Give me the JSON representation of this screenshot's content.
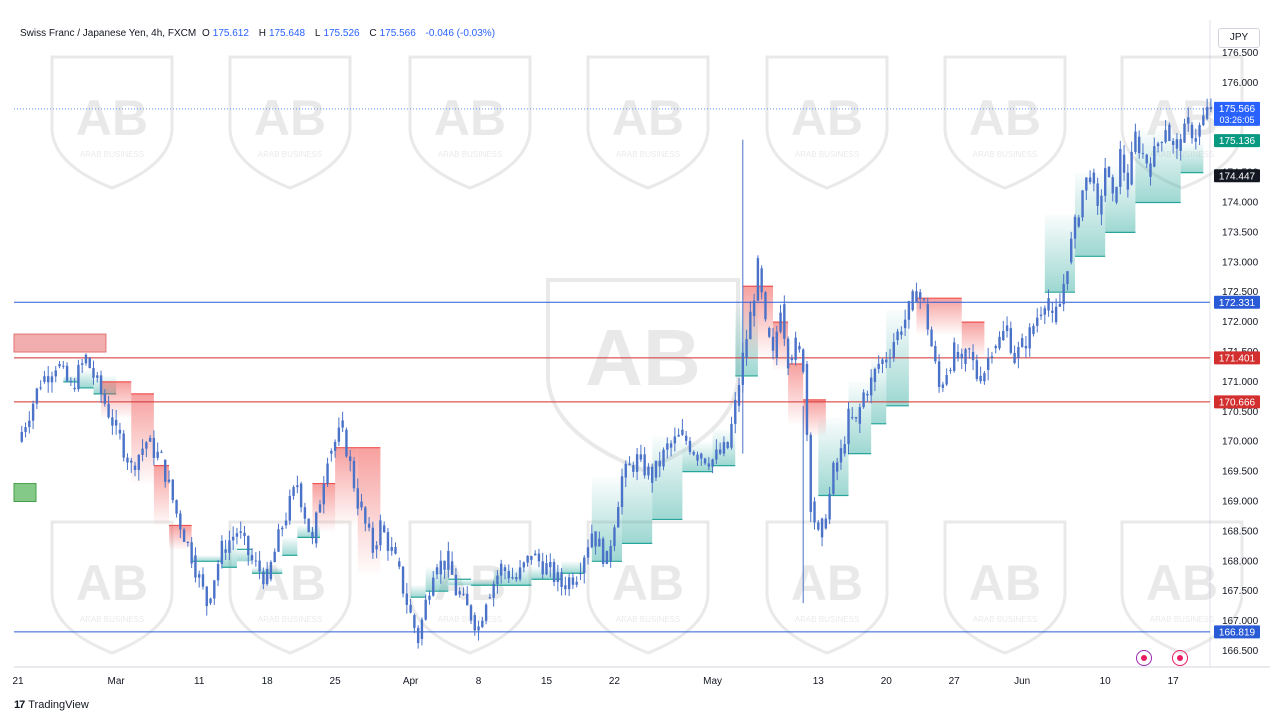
{
  "header": {
    "symbol": "Swiss Franc / Japanese Yen, 4h, FXCM",
    "open_label": "O",
    "open": "175.612",
    "high_label": "H",
    "high": "175.648",
    "low_label": "L",
    "low": "175.526",
    "close_label": "C",
    "close": "175.566",
    "change": "-0.046 (-0.03%)"
  },
  "currency": "JPY",
  "brand": "TradingView",
  "watermark_text": "ARAB BUSINESS",
  "colors": {
    "candle": "#4a72c8",
    "support_fill": "#26a69a",
    "resistance_fill": "#ef5350",
    "blue_line": "#2a5bd7",
    "red_line": "#d32f2f",
    "grid": "#f0f3fa"
  },
  "chart_data": {
    "type": "candlestick",
    "symbol": "CHFJPY",
    "interval": "4h",
    "y_ticks": [
      "176.500",
      "176.000",
      "175.500",
      "175.000",
      "174.500",
      "174.000",
      "173.500",
      "173.000",
      "172.500",
      "172.000",
      "171.500",
      "171.000",
      "170.500",
      "170.000",
      "169.500",
      "169.000",
      "168.500",
      "168.000",
      "167.500",
      "167.000",
      "166.500"
    ],
    "ylim": [
      166.3,
      176.75
    ],
    "x_ticks": [
      "21",
      "Mar",
      "11",
      "18",
      "25",
      "Apr",
      "8",
      "15",
      "22",
      "May",
      "13",
      "20",
      "27",
      "Jun",
      "10",
      "17"
    ],
    "price_labels": [
      {
        "id": "last_price",
        "value": "175.566",
        "time": "03:26:05"
      },
      {
        "id": "trail_stop",
        "value": "175.136"
      },
      {
        "id": "dark_level",
        "value": "174.447"
      },
      {
        "id": "blue_upper",
        "value": "172.331"
      },
      {
        "id": "red_upper",
        "value": "171.401"
      },
      {
        "id": "red_lower",
        "value": "170.666"
      },
      {
        "id": "blue_lower",
        "value": "166.819"
      }
    ],
    "horizontal_levels": [
      {
        "name": "resistance-blue",
        "value": 172.331,
        "color": "#2a5bd7"
      },
      {
        "name": "resistance-red-1",
        "value": 171.401,
        "color": "#d32f2f"
      },
      {
        "name": "resistance-red-2",
        "value": 170.666,
        "color": "#d32f2f"
      },
      {
        "name": "support-blue",
        "value": 166.819,
        "color": "#2a5bd7"
      }
    ],
    "price_path": [
      [
        0,
        170.0
      ],
      [
        3,
        171.0
      ],
      [
        5,
        171.3
      ],
      [
        7,
        170.9
      ],
      [
        9,
        171.4
      ],
      [
        11,
        170.8
      ],
      [
        13,
        170.2
      ],
      [
        15,
        169.6
      ],
      [
        17,
        170.0
      ],
      [
        19,
        169.7
      ],
      [
        21,
        168.8
      ],
      [
        23,
        168.1
      ],
      [
        25,
        167.3
      ],
      [
        27,
        168.2
      ],
      [
        29,
        168.5
      ],
      [
        31,
        168.0
      ],
      [
        33,
        167.7
      ],
      [
        35,
        168.6
      ],
      [
        37,
        169.3
      ],
      [
        39,
        168.3
      ],
      [
        41,
        169.8
      ],
      [
        43,
        170.2
      ],
      [
        45,
        169.0
      ],
      [
        47,
        168.2
      ],
      [
        48,
        168.6
      ],
      [
        50,
        168.0
      ],
      [
        52,
        167.1
      ],
      [
        53,
        166.7
      ],
      [
        55,
        167.9
      ],
      [
        57,
        168.0
      ],
      [
        58,
        167.5
      ],
      [
        60,
        167.1
      ],
      [
        61,
        166.9
      ],
      [
        62,
        167.4
      ],
      [
        64,
        167.9
      ],
      [
        66,
        167.7
      ],
      [
        68,
        168.1
      ],
      [
        70,
        167.9
      ],
      [
        72,
        167.6
      ],
      [
        74,
        167.8
      ],
      [
        76,
        168.5
      ],
      [
        78,
        168.0
      ],
      [
        80,
        169.4
      ],
      [
        82,
        169.7
      ],
      [
        84,
        169.4
      ],
      [
        86,
        169.9
      ],
      [
        88,
        170.1
      ],
      [
        90,
        169.8
      ],
      [
        92,
        169.7
      ],
      [
        94,
        169.9
      ],
      [
        95,
        170.6
      ],
      [
        96,
        171.4
      ],
      [
        97,
        172.1
      ],
      [
        98,
        172.9
      ],
      [
        99,
        171.9
      ],
      [
        100,
        171.4
      ],
      [
        101,
        172.3
      ],
      [
        102,
        171.4
      ],
      [
        103,
        171.6
      ],
      [
        104,
        171.3
      ],
      [
        105,
        169.0
      ],
      [
        106,
        168.4
      ],
      [
        107,
        168.7
      ],
      [
        108,
        169.5
      ],
      [
        109,
        169.8
      ],
      [
        110,
        170.4
      ],
      [
        111,
        170.3
      ],
      [
        112,
        170.8
      ],
      [
        113,
        171.0
      ],
      [
        114,
        171.3
      ],
      [
        115,
        171.4
      ],
      [
        116,
        171.7
      ],
      [
        117,
        171.9
      ],
      [
        118,
        172.2
      ],
      [
        119,
        172.5
      ],
      [
        120,
        172.3
      ],
      [
        121,
        171.6
      ],
      [
        122,
        170.9
      ],
      [
        123,
        171.2
      ],
      [
        124,
        171.5
      ],
      [
        125,
        171.3
      ],
      [
        126,
        171.5
      ],
      [
        127,
        171.1
      ],
      [
        128,
        171.2
      ],
      [
        129,
        171.6
      ],
      [
        130,
        171.7
      ],
      [
        131,
        171.9
      ],
      [
        132,
        171.4
      ],
      [
        133,
        171.6
      ],
      [
        134,
        171.8
      ],
      [
        135,
        172.1
      ],
      [
        136,
        172.4
      ],
      [
        137,
        172.0
      ],
      [
        138,
        172.3
      ],
      [
        139,
        173.0
      ],
      [
        140,
        173.6
      ],
      [
        141,
        174.2
      ],
      [
        142,
        174.5
      ],
      [
        143,
        173.8
      ],
      [
        144,
        174.6
      ],
      [
        145,
        174.0
      ],
      [
        146,
        174.8
      ],
      [
        147,
        174.3
      ],
      [
        148,
        175.1
      ],
      [
        149,
        174.8
      ],
      [
        150,
        174.6
      ],
      [
        151,
        175.0
      ],
      [
        152,
        175.3
      ],
      [
        153,
        174.9
      ],
      [
        154,
        175.0
      ],
      [
        155,
        175.3
      ],
      [
        156,
        175.1
      ],
      [
        157,
        175.4
      ],
      [
        158,
        175.6
      ]
    ],
    "spike_wicks": [
      {
        "at": 96,
        "high": 175.05,
        "low": 169.8
      },
      {
        "at": 104,
        "high": 170.6,
        "low": 167.3
      }
    ],
    "trail_bands": [
      {
        "kind": "support",
        "steps": [
          [
            6,
            171.0,
            171.1
          ],
          [
            8,
            170.9,
            171.2
          ],
          [
            10,
            170.8,
            171.1
          ]
        ]
      },
      {
        "kind": "resistance",
        "steps": [
          [
            11,
            171.0,
            170.4
          ],
          [
            15,
            170.8,
            169.3
          ],
          [
            18,
            169.6,
            168.6
          ],
          [
            20,
            168.6,
            168.2
          ]
        ]
      },
      {
        "kind": "support",
        "steps": [
          [
            23,
            168.0,
            168.1
          ],
          [
            27,
            167.9,
            168.3
          ],
          [
            29,
            168.2,
            168.0
          ],
          [
            31,
            167.8,
            167.9
          ],
          [
            35,
            168.1,
            168.4
          ],
          [
            37,
            168.4,
            168.6
          ]
        ]
      },
      {
        "kind": "resistance",
        "steps": [
          [
            39,
            169.3,
            168.5
          ],
          [
            42,
            169.9,
            168.6
          ],
          [
            45,
            169.9,
            167.8
          ]
        ]
      },
      {
        "kind": "support",
        "steps": [
          [
            52,
            167.4,
            167.6
          ],
          [
            54,
            167.5,
            167.9
          ],
          [
            57,
            167.7,
            167.6
          ],
          [
            60,
            167.6,
            167.7
          ],
          [
            63,
            167.6,
            167.9
          ],
          [
            68,
            167.7,
            167.9
          ],
          [
            72,
            167.8,
            168.0
          ]
        ]
      },
      {
        "kind": "support",
        "steps": [
          [
            76,
            168.0,
            169.4
          ],
          [
            80,
            168.3,
            169.7
          ],
          [
            84,
            168.7,
            170.1
          ],
          [
            88,
            169.5,
            170.0
          ],
          [
            92,
            169.6,
            170.2
          ],
          [
            95,
            171.1,
            172.3
          ]
        ]
      },
      {
        "kind": "resistance",
        "steps": [
          [
            96,
            172.6,
            171.4
          ],
          [
            100,
            172.0,
            171.2
          ],
          [
            102,
            171.3,
            170.3
          ],
          [
            104,
            170.7,
            170.1
          ]
        ]
      },
      {
        "kind": "support",
        "steps": [
          [
            106,
            169.1,
            170.4
          ],
          [
            110,
            169.8,
            171.0
          ],
          [
            113,
            170.3,
            171.4
          ],
          [
            115,
            170.6,
            172.2
          ]
        ]
      },
      {
        "kind": "resistance",
        "steps": [
          [
            119,
            172.4,
            171.8
          ],
          [
            125,
            172.0,
            171.4
          ]
        ]
      },
      {
        "kind": "support",
        "steps": [
          [
            136,
            172.5,
            173.8
          ],
          [
            140,
            173.1,
            174.5
          ],
          [
            144,
            173.5,
            174.6
          ],
          [
            148,
            174.0,
            175.2
          ],
          [
            154,
            174.5,
            175.0
          ]
        ]
      }
    ],
    "zones": [
      {
        "kind": "resistance",
        "from": 0,
        "to": 9,
        "top": 171.8,
        "bottom": 171.6
      },
      {
        "kind": "support",
        "from": 0,
        "to": 1.8,
        "top": 169.3,
        "bottom": 169.1
      }
    ],
    "grid": false,
    "legend": "none"
  }
}
